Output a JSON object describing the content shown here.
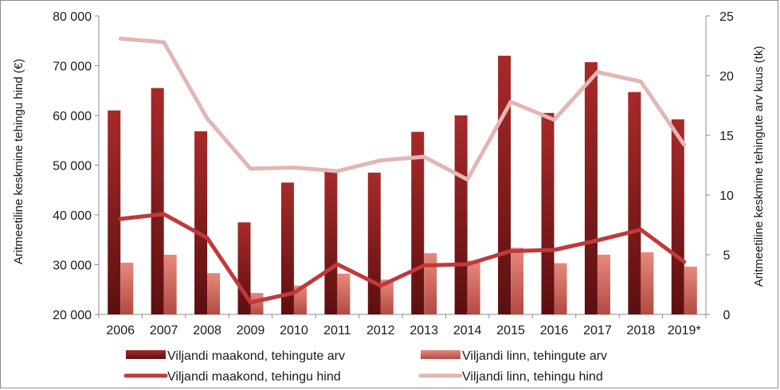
{
  "chart_data": {
    "type": "bar",
    "categories": [
      "2006",
      "2007",
      "2008",
      "2009",
      "2010",
      "2011",
      "2012",
      "2013",
      "2014",
      "2015",
      "2016",
      "2017",
      "2018",
      "2019*"
    ],
    "ylabel": "Aritmeetiline keskmine tehingu hind (€)",
    "y2label": "Aritmeetiline keskmine tehingute arv kuus (tk)",
    "ylim": [
      20000,
      80000
    ],
    "y2lim": [
      0,
      25
    ],
    "yticks": [
      "20 000",
      "30 000",
      "40 000",
      "50 000",
      "60 000",
      "70 000",
      "80 000"
    ],
    "y2ticks": [
      "0",
      "5",
      "10",
      "15",
      "20",
      "25"
    ],
    "grid": false,
    "legend_position": "bottom",
    "series": [
      {
        "name": "Viljandi maakond, tehingute arv",
        "kind": "bar",
        "axis": "left",
        "color": "#8b1a1a",
        "values": [
          61000,
          65500,
          56800,
          38500,
          46500,
          49000,
          48500,
          56700,
          60000,
          72000,
          60500,
          70700,
          64700,
          59200
        ]
      },
      {
        "name": "Viljandi linn, tehingute arv",
        "kind": "bar",
        "axis": "left",
        "color": "#e07b70",
        "values": [
          30400,
          32000,
          28300,
          24300,
          25800,
          28200,
          27000,
          32300,
          30800,
          33400,
          30300,
          32000,
          32500,
          29600
        ]
      },
      {
        "name": "Viljandi maakond, tehingu hind",
        "kind": "line",
        "axis": "right",
        "color": "#c0393b",
        "values": [
          8.0,
          8.4,
          6.4,
          1.0,
          1.8,
          4.2,
          2.4,
          4.1,
          4.2,
          5.3,
          5.4,
          6.2,
          7.1,
          4.4
        ]
      },
      {
        "name": "Viljandi linn, tehingu hind",
        "kind": "line",
        "axis": "right",
        "color": "#e3b6b3",
        "values": [
          23.1,
          22.8,
          16.4,
          12.2,
          12.3,
          12.0,
          12.9,
          13.2,
          11.3,
          17.8,
          16.3,
          20.3,
          19.5,
          14.2
        ]
      }
    ]
  }
}
